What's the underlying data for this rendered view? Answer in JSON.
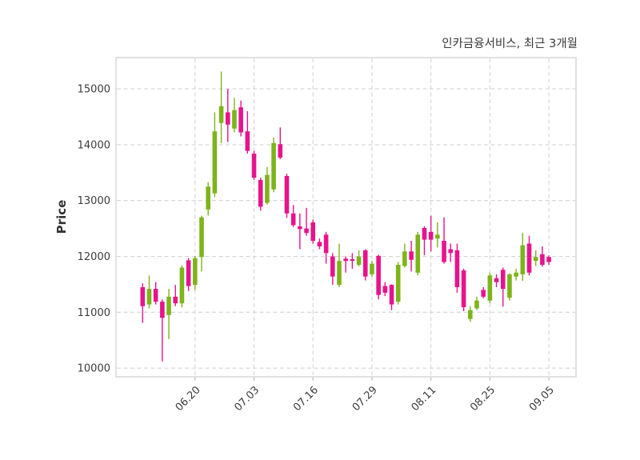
{
  "chart_data": {
    "type": "candlestick",
    "title": "인카금융서비스, 최근 3개월",
    "ylabel": "Price",
    "grid": "dashed",
    "legend": "none",
    "up_color": "#7db41c",
    "down_color": "#e6148c",
    "grid_color": "#d5d5d5",
    "spine_color": "#dedede",
    "tick_color": "#3c3c3c",
    "ylim": [
      9845,
      15560
    ],
    "yticks": [
      10000,
      11000,
      12000,
      13000,
      14000,
      15000
    ],
    "xticks": [
      {
        "index": 8,
        "label": "06.20"
      },
      {
        "index": 17,
        "label": "07.03"
      },
      {
        "index": 26,
        "label": "07.16"
      },
      {
        "index": 35,
        "label": "07.29"
      },
      {
        "index": 44,
        "label": "08.11"
      },
      {
        "index": 53,
        "label": "08.25"
      },
      {
        "index": 62,
        "label": "09.05"
      }
    ],
    "candles_format": "[open, high, low, close]",
    "candles": [
      [
        11450,
        11520,
        10810,
        11110
      ],
      [
        11140,
        11660,
        11070,
        11420
      ],
      [
        11420,
        11540,
        11140,
        11190
      ],
      [
        11190,
        11230,
        10120,
        10900
      ],
      [
        10950,
        11420,
        10520,
        11280
      ],
      [
        11280,
        11490,
        11110,
        11160
      ],
      [
        11160,
        11840,
        11090,
        11800
      ],
      [
        11930,
        11970,
        11380,
        11470
      ],
      [
        11490,
        12010,
        11400,
        11970
      ],
      [
        11990,
        12730,
        11730,
        12700
      ],
      [
        12840,
        13330,
        12730,
        13250
      ],
      [
        13130,
        14580,
        13060,
        14240
      ],
      [
        14390,
        15310,
        14030,
        14690
      ],
      [
        14580,
        15000,
        14050,
        14360
      ],
      [
        14290,
        14840,
        14220,
        14620
      ],
      [
        14670,
        14790,
        14150,
        14220
      ],
      [
        14240,
        14600,
        13840,
        13890
      ],
      [
        13840,
        13890,
        13370,
        13410
      ],
      [
        13370,
        13410,
        12820,
        12890
      ],
      [
        12960,
        13600,
        12930,
        13460
      ],
      [
        13200,
        14130,
        13150,
        14030
      ],
      [
        14010,
        14310,
        13740,
        13770
      ],
      [
        13440,
        13480,
        12690,
        12770
      ],
      [
        12770,
        12920,
        12530,
        12560
      ],
      [
        12540,
        12770,
        12130,
        12490
      ],
      [
        12500,
        12870,
        12370,
        12420
      ],
      [
        12610,
        12660,
        12230,
        12280
      ],
      [
        12260,
        12320,
        12130,
        12180
      ],
      [
        12390,
        12440,
        11870,
        12060
      ],
      [
        12000,
        12060,
        11490,
        11640
      ],
      [
        11490,
        12230,
        11450,
        11920
      ],
      [
        11960,
        12000,
        11710,
        11920
      ],
      [
        11950,
        12060,
        11780,
        11920
      ],
      [
        11850,
        12110,
        11820,
        12000
      ],
      [
        12110,
        12130,
        11570,
        11640
      ],
      [
        11680,
        11920,
        11640,
        11870
      ],
      [
        12010,
        12030,
        11230,
        11310
      ],
      [
        11470,
        11540,
        11290,
        11350
      ],
      [
        11490,
        11500,
        11040,
        11140
      ],
      [
        11190,
        11900,
        11140,
        11850
      ],
      [
        11830,
        12230,
        11800,
        12090
      ],
      [
        12090,
        12280,
        11730,
        11940
      ],
      [
        11710,
        12440,
        11660,
        12390
      ],
      [
        12510,
        12540,
        12020,
        12300
      ],
      [
        12440,
        12730,
        12090,
        12300
      ],
      [
        12320,
        12610,
        12160,
        12390
      ],
      [
        12280,
        12700,
        11870,
        11900
      ],
      [
        12130,
        12230,
        11900,
        12060
      ],
      [
        12110,
        12230,
        11350,
        11450
      ],
      [
        11750,
        11780,
        11020,
        11090
      ],
      [
        10880,
        11110,
        10830,
        11040
      ],
      [
        11070,
        11280,
        11040,
        11210
      ],
      [
        11400,
        11450,
        11250,
        11280
      ],
      [
        11210,
        11710,
        11160,
        11660
      ],
      [
        11610,
        11680,
        11450,
        11540
      ],
      [
        11760,
        11800,
        11100,
        11420
      ],
      [
        11260,
        11700,
        11210,
        11680
      ],
      [
        11640,
        11780,
        11570,
        11710
      ],
      [
        11680,
        12420,
        11560,
        12200
      ],
      [
        12230,
        12370,
        11660,
        11710
      ],
      [
        11920,
        12110,
        11830,
        11990
      ],
      [
        12040,
        12180,
        11820,
        11850
      ],
      [
        11990,
        12020,
        11850,
        11900
      ]
    ]
  }
}
